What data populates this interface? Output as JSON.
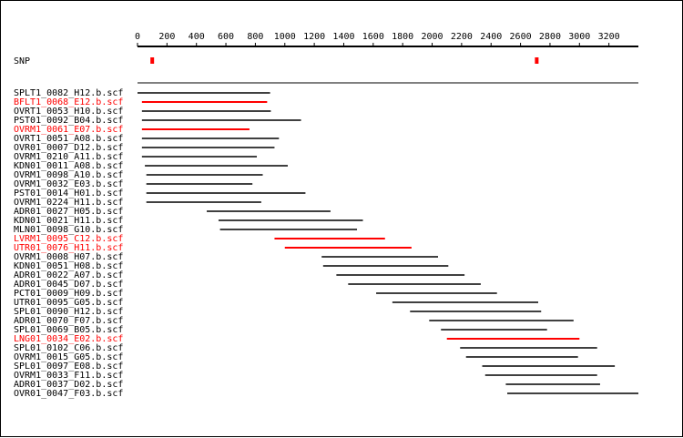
{
  "chart_data": {
    "type": "alignment",
    "xlim": [
      0,
      3400
    ],
    "ticks": [
      0,
      200,
      400,
      600,
      800,
      1000,
      1200,
      1400,
      1600,
      1800,
      2000,
      2200,
      2400,
      2600,
      2800,
      3000,
      3200
    ],
    "snp_track": {
      "label": "SNP",
      "positions": [
        100,
        2710
      ],
      "color": "#ff0000"
    },
    "colors": {
      "normal": "#000000",
      "highlight": "#ff0000"
    },
    "reads": [
      {
        "name": "SPLT1_0082_H12.b.scf",
        "start": 0,
        "end": 900,
        "highlight": false
      },
      {
        "name": "BFLT1_0068_E12.b.scf",
        "start": 30,
        "end": 880,
        "highlight": true
      },
      {
        "name": "OVRT1_0053_H10.b.scf",
        "start": 30,
        "end": 905,
        "highlight": false
      },
      {
        "name": "PST01_0092_B04.b.scf",
        "start": 30,
        "end": 1110,
        "highlight": false
      },
      {
        "name": "OVRM1_0061_E07.b.scf",
        "start": 30,
        "end": 760,
        "highlight": true
      },
      {
        "name": "OVRT1_0051_A08.b.scf",
        "start": 30,
        "end": 960,
        "highlight": false
      },
      {
        "name": "OVR01_0007_D12.b.scf",
        "start": 30,
        "end": 930,
        "highlight": false
      },
      {
        "name": "OVRM1_0210_A11.b.scf",
        "start": 30,
        "end": 810,
        "highlight": false
      },
      {
        "name": "KDN01_0011_A08.b.scf",
        "start": 50,
        "end": 1020,
        "highlight": false
      },
      {
        "name": "OVRM1_0098_A10.b.scf",
        "start": 60,
        "end": 850,
        "highlight": false
      },
      {
        "name": "OVRM1_0032_E03.b.scf",
        "start": 60,
        "end": 780,
        "highlight": false
      },
      {
        "name": "PST01_0014_H01.b.scf",
        "start": 60,
        "end": 1140,
        "highlight": false
      },
      {
        "name": "OVRM1_0224_H11.b.scf",
        "start": 60,
        "end": 840,
        "highlight": false
      },
      {
        "name": "ADR01_0027_H05.b.scf",
        "start": 470,
        "end": 1310,
        "highlight": false
      },
      {
        "name": "KDN01_0021_H11.b.scf",
        "start": 550,
        "end": 1530,
        "highlight": false
      },
      {
        "name": "MLN01_0098_G10.b.scf",
        "start": 560,
        "end": 1490,
        "highlight": false
      },
      {
        "name": "LVRM1_0095_C12.b.scf",
        "start": 930,
        "end": 1680,
        "highlight": true
      },
      {
        "name": "UTR01_0076_H11.b.scf",
        "start": 1000,
        "end": 1860,
        "highlight": true
      },
      {
        "name": "OVRM1_0008_H07.b.scf",
        "start": 1250,
        "end": 2040,
        "highlight": false
      },
      {
        "name": "KDN01_0051_H08.b.scf",
        "start": 1260,
        "end": 2110,
        "highlight": false
      },
      {
        "name": "ADR01_0022_A07.b.scf",
        "start": 1350,
        "end": 2220,
        "highlight": false
      },
      {
        "name": "ADR01_0045_D07.b.scf",
        "start": 1430,
        "end": 2330,
        "highlight": false
      },
      {
        "name": "PCT01_0009_H09.b.scf",
        "start": 1620,
        "end": 2440,
        "highlight": false
      },
      {
        "name": "UTR01_0095_G05.b.scf",
        "start": 1730,
        "end": 2720,
        "highlight": false
      },
      {
        "name": "SPL01_0090_H12.b.scf",
        "start": 1850,
        "end": 2740,
        "highlight": false
      },
      {
        "name": "ADR01_0070_F07.b.scf",
        "start": 1980,
        "end": 2960,
        "highlight": false
      },
      {
        "name": "SPL01_0069_B05.b.scf",
        "start": 2060,
        "end": 2780,
        "highlight": false
      },
      {
        "name": "LNG01_0034_E02.b.scf",
        "start": 2100,
        "end": 3000,
        "highlight": true
      },
      {
        "name": "SPL01_0102_C06.b.scf",
        "start": 2190,
        "end": 3120,
        "highlight": false
      },
      {
        "name": "OVRM1_0015_G05.b.scf",
        "start": 2230,
        "end": 2990,
        "highlight": false
      },
      {
        "name": "SPL01_0097_E08.b.scf",
        "start": 2340,
        "end": 3240,
        "highlight": false
      },
      {
        "name": "OVRM1_0033_F11.b.scf",
        "start": 2360,
        "end": 3120,
        "highlight": false
      },
      {
        "name": "ADR01_0037_D02.b.scf",
        "start": 2500,
        "end": 3140,
        "highlight": false
      },
      {
        "name": "OVR01_0047_F03.b.scf",
        "start": 2510,
        "end": 3400,
        "highlight": false
      }
    ]
  }
}
